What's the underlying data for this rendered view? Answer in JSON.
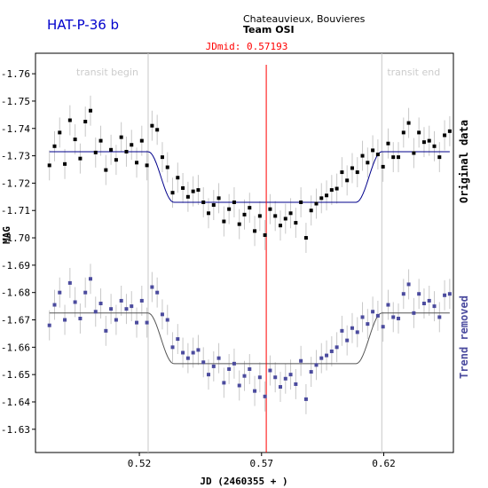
{
  "chart_data": {
    "type": "scatter",
    "title": "HAT-P-36 b",
    "observers": "Chateauvieux, Bouvieres",
    "team": "Team OSI",
    "jdmid_label": "JDmid: 0.57193",
    "jdmid": 0.57193,
    "transit_begin": 0.5236,
    "transit_end": 0.6192,
    "transit_begin_label": "transit begin",
    "transit_end_label": "transit end",
    "xlabel": "JD (2460355 + )",
    "ylabel": "MAG",
    "right_label_top": "Original data",
    "right_label_bottom": "Trend removed",
    "xlim": [
      0.4775,
      0.6485
    ],
    "ylim": [
      -1.7675,
      -1.6215
    ],
    "x_ticks": [
      0.52,
      0.57,
      0.62
    ],
    "x_tick_labels": [
      "0.52",
      "0.57",
      "0.62"
    ],
    "y_ticks": [
      -1.76,
      -1.75,
      -1.74,
      -1.73,
      -1.72,
      -1.71,
      -1.7,
      -1.69,
      -1.68,
      -1.67,
      -1.66,
      -1.65,
      -1.64,
      -1.63
    ],
    "y_tick_labels": [
      "-1.76",
      "-1.75",
      "-1.74",
      "-1.73",
      "-1.72",
      "-1.71",
      "-1.70",
      "-1.69",
      "-1.68",
      "-1.67",
      "-1.66",
      "-1.65",
      "-1.64",
      "-1.63"
    ],
    "model": {
      "depth": 0.0185,
      "ingress": 0.0105
    },
    "colors": {
      "original_points": "#000000",
      "original_model": "#00008b",
      "detrended_points": "#4b4b9e",
      "detrended_model": "#555555",
      "error_bars": "#c8c8c8",
      "midline": "#ff0000",
      "transit_lines": "#c8c8c8",
      "title": "#0000cc",
      "right_label_bottom": "#4b4b9e"
    },
    "series": [
      {
        "name": "Original data",
        "baseline": -1.7315,
        "err": 0.0055,
        "x": [
          0.4832,
          0.4853,
          0.4874,
          0.4895,
          0.4916,
          0.4937,
          0.4958,
          0.4979,
          0.5,
          0.5021,
          0.5042,
          0.5063,
          0.5084,
          0.5105,
          0.5126,
          0.5147,
          0.5168,
          0.5189,
          0.521,
          0.5231,
          0.5252,
          0.5273,
          0.5294,
          0.5315,
          0.5336,
          0.5357,
          0.5378,
          0.5399,
          0.542,
          0.5441,
          0.5462,
          0.5483,
          0.5504,
          0.5525,
          0.5546,
          0.5567,
          0.5588,
          0.5609,
          0.563,
          0.5651,
          0.5672,
          0.5693,
          0.5714,
          0.5735,
          0.5756,
          0.5777,
          0.5798,
          0.5819,
          0.584,
          0.5861,
          0.5882,
          0.5903,
          0.5924,
          0.5945,
          0.5966,
          0.5987,
          0.6008,
          0.6029,
          0.605,
          0.6071,
          0.6092,
          0.6113,
          0.6134,
          0.6155,
          0.6176,
          0.6197,
          0.6218,
          0.6239,
          0.626,
          0.6281,
          0.6302,
          0.6323,
          0.6344,
          0.6365,
          0.6386,
          0.6407,
          0.6428,
          0.6449,
          0.647
        ],
        "y": [
          -1.7265,
          -1.7335,
          -1.7385,
          -1.727,
          -1.743,
          -1.736,
          -1.729,
          -1.7425,
          -1.7465,
          -1.7312,
          -1.7355,
          -1.7248,
          -1.7322,
          -1.7285,
          -1.7368,
          -1.7315,
          -1.734,
          -1.7275,
          -1.7355,
          -1.7265,
          -1.741,
          -1.7395,
          -1.7295,
          -1.7258,
          -1.7165,
          -1.722,
          -1.7182,
          -1.715,
          -1.717,
          -1.7175,
          -1.713,
          -1.709,
          -1.712,
          -1.7145,
          -1.706,
          -1.7105,
          -1.713,
          -1.705,
          -1.7085,
          -1.711,
          -1.7025,
          -1.708,
          -1.701,
          -1.7105,
          -1.708,
          -1.7045,
          -1.707,
          -1.709,
          -1.7055,
          -1.713,
          -1.7,
          -1.71,
          -1.7125,
          -1.7145,
          -1.7155,
          -1.7175,
          -1.718,
          -1.724,
          -1.721,
          -1.7255,
          -1.724,
          -1.73,
          -1.7275,
          -1.732,
          -1.7305,
          -1.726,
          -1.7345,
          -1.7295,
          -1.7295,
          -1.7385,
          -1.742,
          -1.731,
          -1.7385,
          -1.735,
          -1.7355,
          -1.7335,
          -1.7295,
          -1.7375,
          -1.739
        ]
      },
      {
        "name": "Trend removed",
        "baseline": -1.6725,
        "err": 0.0055,
        "x": [
          0.4832,
          0.4853,
          0.4874,
          0.4895,
          0.4916,
          0.4937,
          0.4958,
          0.4979,
          0.5,
          0.5021,
          0.5042,
          0.5063,
          0.5084,
          0.5105,
          0.5126,
          0.5147,
          0.5168,
          0.5189,
          0.521,
          0.5231,
          0.5252,
          0.5273,
          0.5294,
          0.5315,
          0.5336,
          0.5357,
          0.5378,
          0.5399,
          0.542,
          0.5441,
          0.5462,
          0.5483,
          0.5504,
          0.5525,
          0.5546,
          0.5567,
          0.5588,
          0.5609,
          0.563,
          0.5651,
          0.5672,
          0.5693,
          0.5714,
          0.5735,
          0.5756,
          0.5777,
          0.5798,
          0.5819,
          0.584,
          0.5861,
          0.5882,
          0.5903,
          0.5924,
          0.5945,
          0.5966,
          0.5987,
          0.6008,
          0.6029,
          0.605,
          0.6071,
          0.6092,
          0.6113,
          0.6134,
          0.6155,
          0.6176,
          0.6197,
          0.6218,
          0.6239,
          0.626,
          0.6281,
          0.6302,
          0.6323,
          0.6344,
          0.6365,
          0.6386,
          0.6407,
          0.6428,
          0.6449,
          0.647
        ],
        "y": [
          -1.668,
          -1.6755,
          -1.68,
          -1.67,
          -1.6835,
          -1.6765,
          -1.6705,
          -1.68,
          -1.685,
          -1.673,
          -1.676,
          -1.666,
          -1.674,
          -1.67,
          -1.677,
          -1.674,
          -1.675,
          -1.669,
          -1.677,
          -1.669,
          -1.682,
          -1.68,
          -1.672,
          -1.67,
          -1.66,
          -1.663,
          -1.658,
          -1.656,
          -1.658,
          -1.659,
          -1.6545,
          -1.65,
          -1.653,
          -1.656,
          -1.647,
          -1.652,
          -1.654,
          -1.646,
          -1.6495,
          -1.652,
          -1.644,
          -1.649,
          -1.642,
          -1.6515,
          -1.649,
          -1.6455,
          -1.6485,
          -1.65,
          -1.6465,
          -1.655,
          -1.641,
          -1.651,
          -1.6535,
          -1.656,
          -1.657,
          -1.6585,
          -1.66,
          -1.666,
          -1.6625,
          -1.667,
          -1.6655,
          -1.671,
          -1.6685,
          -1.673,
          -1.6715,
          -1.6675,
          -1.6755,
          -1.671,
          -1.6705,
          -1.6795,
          -1.683,
          -1.6725,
          -1.6795,
          -1.676,
          -1.677,
          -1.675,
          -1.671,
          -1.679,
          -1.6795
        ]
      }
    ]
  }
}
